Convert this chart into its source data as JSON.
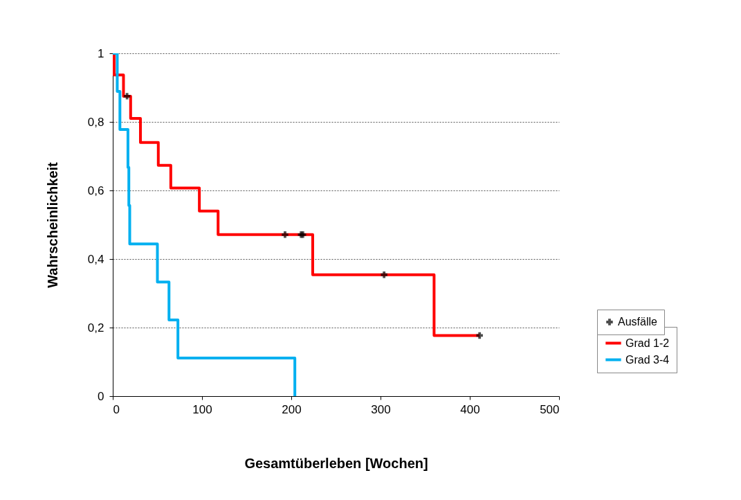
{
  "chart_data": {
    "type": "step",
    "xlabel": "Gesamtüberleben [Wochen]",
    "ylabel": "Wahrscheinlichkeit",
    "xlim": [
      0,
      500
    ],
    "xticks": [
      0,
      100,
      200,
      300,
      400,
      500
    ],
    "ylim": [
      0,
      1
    ],
    "yticks": [
      0,
      {
        "value": 0.2,
        "label": "0,2"
      },
      {
        "value": 0.4,
        "label": "0,4"
      },
      {
        "value": 0.6,
        "label": "0,6"
      },
      {
        "value": 0.8,
        "label": "0,8"
      },
      1
    ],
    "grid": "y",
    "legend": "right",
    "series": [
      {
        "name": "Ausfälle",
        "type": "scatter",
        "marker": "cross",
        "color": "#000000",
        "x": [
          16,
          193,
          211,
          213,
          304,
          411
        ],
        "values": [
          0.875,
          0.471,
          0.471,
          0.471,
          0.354,
          0.177
        ]
      },
      {
        "name": "Grad 1-2",
        "color": "#ff0000",
        "x": [
          0,
          1.5,
          12,
          20,
          31,
          51,
          65,
          97,
          118,
          224,
          360,
          411
        ],
        "values": [
          1,
          0.937,
          0.875,
          0.81,
          0.74,
          0.673,
          0.607,
          0.54,
          0.471,
          0.354,
          0.177,
          0.177
        ]
      },
      {
        "name": "Grad 3-4",
        "color": "#00b0f0",
        "x": [
          0,
          5,
          8,
          17,
          18,
          19,
          50,
          63,
          73,
          204
        ],
        "values": [
          1,
          0.889,
          0.778,
          0.667,
          0.556,
          0.444,
          0.333,
          0.222,
          0.111,
          0
        ]
      }
    ]
  }
}
